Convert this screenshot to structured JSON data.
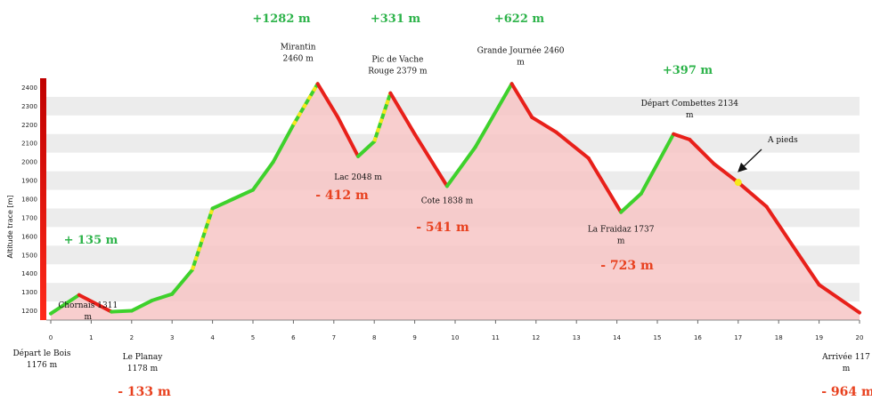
{
  "chart_data": {
    "type": "area",
    "title": "",
    "xlabel": "",
    "ylabel": "Altitude trace [m]",
    "xlim": [
      0,
      20
    ],
    "ylim": [
      1150,
      2450
    ],
    "x_ticks": [
      "0",
      "1",
      "2",
      "3",
      "4",
      "5",
      "6",
      "7",
      "8",
      "9",
      "10",
      "11",
      "12",
      "13",
      "14",
      "15",
      "16",
      "17",
      "18",
      "19",
      "20"
    ],
    "y_ticks": [
      "1200",
      "1300",
      "1400",
      "1500",
      "1600",
      "1700",
      "1800",
      "1900",
      "2000",
      "2100",
      "2200",
      "2300",
      "2400"
    ],
    "grid": true,
    "colors": {
      "climb": "#3ed12c",
      "descent": "#e8201a",
      "walk": "#f5e81c",
      "fill": "#f7c5c5",
      "gain_text": "#2db34a",
      "loss_text": "#e8411f"
    },
    "profile": [
      {
        "x": 0,
        "y": 1185
      },
      {
        "x": 0.7,
        "y": 1285
      },
      {
        "x": 1.5,
        "y": 1195
      },
      {
        "x": 2.0,
        "y": 1200
      },
      {
        "x": 2.5,
        "y": 1255
      },
      {
        "x": 3.0,
        "y": 1290
      },
      {
        "x": 3.5,
        "y": 1420
      },
      {
        "x": 4.0,
        "y": 1750
      },
      {
        "x": 4.5,
        "y": 1800
      },
      {
        "x": 5.0,
        "y": 1850
      },
      {
        "x": 5.5,
        "y": 2000
      },
      {
        "x": 6.0,
        "y": 2200
      },
      {
        "x": 6.6,
        "y": 2420
      },
      {
        "x": 7.1,
        "y": 2240
      },
      {
        "x": 7.6,
        "y": 2030
      },
      {
        "x": 8.0,
        "y": 2110
      },
      {
        "x": 8.4,
        "y": 2370
      },
      {
        "x": 9.0,
        "y": 2150
      },
      {
        "x": 9.8,
        "y": 1870
      },
      {
        "x": 10.5,
        "y": 2080
      },
      {
        "x": 11.4,
        "y": 2420
      },
      {
        "x": 11.9,
        "y": 2240
      },
      {
        "x": 12.5,
        "y": 2160
      },
      {
        "x": 13.3,
        "y": 2020
      },
      {
        "x": 14.1,
        "y": 1730
      },
      {
        "x": 14.6,
        "y": 1830
      },
      {
        "x": 15.4,
        "y": 2150
      },
      {
        "x": 15.8,
        "y": 2120
      },
      {
        "x": 16.4,
        "y": 1990
      },
      {
        "x": 17.0,
        "y": 1890
      },
      {
        "x": 17.7,
        "y": 1760
      },
      {
        "x": 18.5,
        "y": 1500
      },
      {
        "x": 19.0,
        "y": 1340
      },
      {
        "x": 20.0,
        "y": 1190
      }
    ],
    "dotted_segments": [
      [
        3.5,
        4.0
      ],
      [
        6.0,
        6.6
      ],
      [
        8.0,
        8.4
      ],
      [
        10.8,
        11.4
      ],
      [
        15.4,
        15.8
      ]
    ],
    "walk_point": {
      "x": 17.0,
      "y": 1890
    },
    "places": [
      {
        "name": "Chornais 1311\nm",
        "x": 0.7,
        "y": 1285
      },
      {
        "name": "Mirantin\n2460 m",
        "x": 6.6,
        "y": 2420
      },
      {
        "name": "Lac 2048 m",
        "x": 7.6,
        "y": 2030
      },
      {
        "name": "Pic de Vache\nRouge 2379 m",
        "x": 8.4,
        "y": 2370
      },
      {
        "name": "Cote 1838 m",
        "x": 9.8,
        "y": 1870
      },
      {
        "name": "Grande Journée 2460\nm",
        "x": 11.4,
        "y": 2420
      },
      {
        "name": "La Fraidaz 1737\nm",
        "x": 14.1,
        "y": 1730
      },
      {
        "name": "Départ Combettes 2134\nm",
        "x": 15.8,
        "y": 2120
      }
    ],
    "gains": [
      "+1282 m",
      "+331 m",
      "+622 m",
      "+397 m",
      "+ 135 m"
    ],
    "losses": [
      "- 412 m",
      "- 541 m",
      "- 723 m",
      "- 133 m",
      "- 964 m"
    ],
    "endpoints": {
      "start": "Départ le Bois\n1176 m",
      "planay": "Le  Planay\n1178 m",
      "end": "Arrivée  117\nm"
    },
    "annotation": "A pieds"
  }
}
